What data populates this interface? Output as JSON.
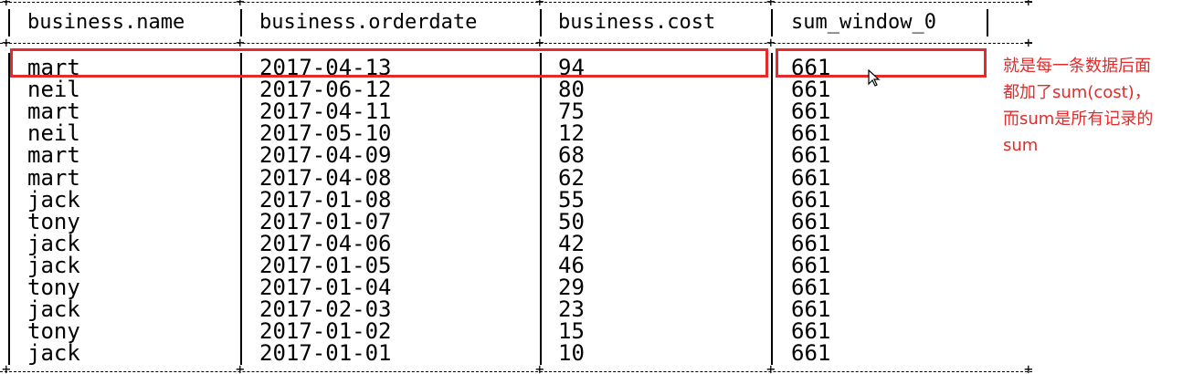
{
  "table": {
    "headers": [
      "business.name",
      "business.orderdate",
      "business.cost",
      "sum_window_0"
    ],
    "rows": [
      [
        "mart",
        "2017-04-13",
        "94",
        "661"
      ],
      [
        "neil",
        "2017-06-12",
        "80",
        "661"
      ],
      [
        "mart",
        "2017-04-11",
        "75",
        "661"
      ],
      [
        "neil",
        "2017-05-10",
        "12",
        "661"
      ],
      [
        "mart",
        "2017-04-09",
        "68",
        "661"
      ],
      [
        "mart",
        "2017-04-08",
        "62",
        "661"
      ],
      [
        "jack",
        "2017-01-08",
        "55",
        "661"
      ],
      [
        "tony",
        "2017-01-07",
        "50",
        "661"
      ],
      [
        "jack",
        "2017-04-06",
        "42",
        "661"
      ],
      [
        "jack",
        "2017-01-05",
        "46",
        "661"
      ],
      [
        "tony",
        "2017-01-04",
        "29",
        "661"
      ],
      [
        "jack",
        "2017-02-03",
        "23",
        "661"
      ],
      [
        "tony",
        "2017-01-02",
        "15",
        "661"
      ],
      [
        "jack",
        "2017-01-01",
        "10",
        "661"
      ]
    ]
  },
  "annotation": {
    "lines": [
      "就是每一条数据后面",
      "都加了sum(cost)，",
      "而sum是所有记录的",
      "sum"
    ]
  },
  "colors": {
    "highlight": "#e32b2b",
    "text": "#000000",
    "background": "#ffffff"
  },
  "icons": {
    "cursor": "mouse-pointer-icon"
  }
}
